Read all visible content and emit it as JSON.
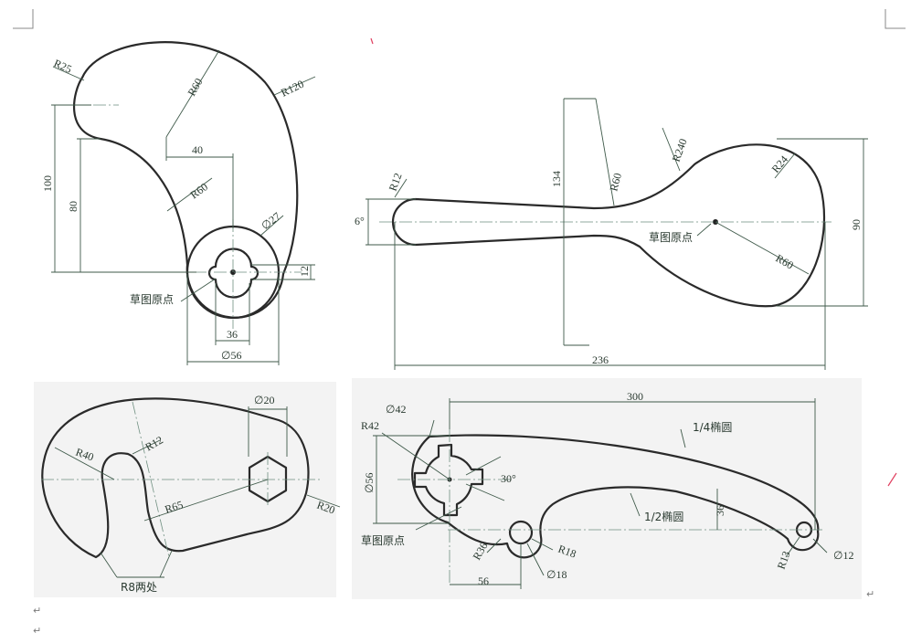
{
  "drawing1": {
    "dims": {
      "r25": "R25",
      "r60_top": "R60",
      "r120": "R120",
      "d40": "40",
      "r60_mid": "R60",
      "d27": "∅27",
      "d100": "100",
      "d80": "80",
      "d12": "12",
      "d36": "36",
      "d56": "∅56"
    },
    "origin_label": "草图原点"
  },
  "drawing2": {
    "dims": {
      "r12": "R12",
      "angle6": "6°",
      "d134": "134",
      "r60_neck": "R60",
      "r240": "R240",
      "r24": "R24",
      "d90": "90",
      "r60_head": "R60",
      "d236": "236"
    },
    "origin_label": "草图原点"
  },
  "drawing3": {
    "dims": {
      "d20": "∅20",
      "r40": "R40",
      "r12": "R12",
      "r65": "R65",
      "r20": "R20"
    },
    "note": "R8两处"
  },
  "drawing4": {
    "dims": {
      "d42": "∅42",
      "d300": "300",
      "r42": "R42",
      "d56": "∅56",
      "angle30": "30°",
      "d36": "36",
      "r36": "R36",
      "r18": "R18",
      "d18": "∅18",
      "d56_bottom": "56",
      "r13": "R13",
      "d12": "∅12"
    },
    "quarter_ellipse": "1/4椭圆",
    "half_ellipse": "1/2椭圆",
    "origin_label": "草图原点"
  },
  "return_mark": "↵"
}
